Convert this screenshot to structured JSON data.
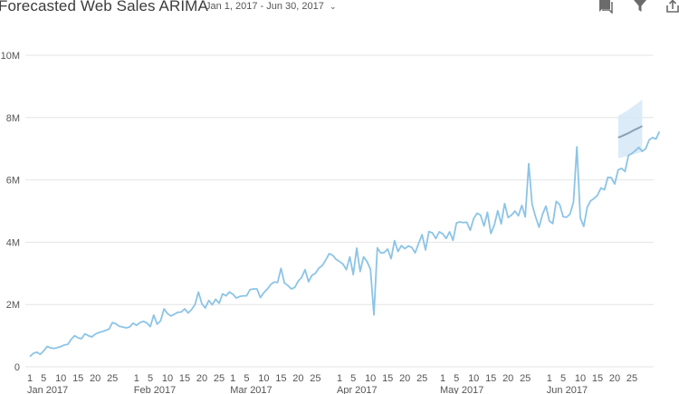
{
  "header": {
    "title": "Forecasted Web Sales ARIMA",
    "date_range": "Jan 1, 2017 - Jun 30, 2017",
    "date_range_icon": "chevron-down-icon",
    "tools": [
      "comment-icon",
      "filter-icon",
      "share-icon"
    ]
  },
  "colors": {
    "actual": "#8cc4e6",
    "forecast": "#8aa0b4",
    "band": "#d6e8f7",
    "grid": "#e4e4e4",
    "icon": "#6b6b6b"
  },
  "chart_data": {
    "type": "line",
    "title": "Forecasted Web Sales ARIMA",
    "x_unit": "date",
    "y_unit": "sales",
    "ylim": [
      0,
      10000000
    ],
    "yticks": [
      0,
      2000000,
      4000000,
      6000000,
      8000000,
      10000000
    ],
    "ytick_labels": [
      "0",
      "2M",
      "4M",
      "6M",
      "8M",
      "10M"
    ],
    "xlim": [
      "2017-01-01",
      "2017-06-30"
    ],
    "x_month_labels": [
      {
        "date": "2017-01-01",
        "label": "Jan 2017"
      },
      {
        "date": "2017-02-01",
        "label": "Feb 2017"
      },
      {
        "date": "2017-03-01",
        "label": "Mar 2017"
      },
      {
        "date": "2017-04-01",
        "label": "Apr 2017"
      },
      {
        "date": "2017-05-01",
        "label": "May 2017"
      },
      {
        "date": "2017-06-01",
        "label": "Jun 2017"
      }
    ],
    "x_day_ticks": [
      1,
      5,
      10,
      15,
      20,
      25
    ],
    "grid": true,
    "legend": "none",
    "series": [
      {
        "kind": "actual",
        "start": "2017-01-01",
        "values": [
          330000,
          430000,
          470000,
          400000,
          510000,
          650000,
          610000,
          590000,
          620000,
          650000,
          700000,
          720000,
          880000,
          1000000,
          930000,
          900000,
          1060000,
          1000000,
          960000,
          1050000,
          1100000,
          1130000,
          1170000,
          1210000,
          1420000,
          1380000,
          1300000,
          1280000,
          1250000,
          1280000,
          1400000,
          1330000,
          1420000,
          1460000,
          1410000,
          1290000,
          1660000,
          1370000,
          1480000,
          1860000,
          1710000,
          1630000,
          1690000,
          1750000,
          1760000,
          1860000,
          1730000,
          1840000,
          2000000,
          2400000,
          2020000,
          1890000,
          2130000,
          1990000,
          2170000,
          2040000,
          2340000,
          2280000,
          2400000,
          2330000,
          2210000,
          2260000,
          2280000,
          2280000,
          2480000,
          2500000,
          2500000,
          2220000,
          2380000,
          2490000,
          2640000,
          2720000,
          2710000,
          3160000,
          2690000,
          2610000,
          2500000,
          2550000,
          2750000,
          2870000,
          3120000,
          2730000,
          2940000,
          3000000,
          3170000,
          3250000,
          3430000,
          3630000,
          3580000,
          3450000,
          3380000,
          3300000,
          3120000,
          3530000,
          2960000,
          3810000,
          3060000,
          3530000,
          3380000,
          3130000,
          1670000,
          3820000,
          3650000,
          3670000,
          3780000,
          3470000,
          4050000,
          3700000,
          3890000,
          3790000,
          3880000,
          3830000,
          3660000,
          3960000,
          4240000,
          3750000,
          4340000,
          4300000,
          4120000,
          4330000,
          4270000,
          4120000,
          4330000,
          4060000,
          4620000,
          4650000,
          4630000,
          4640000,
          4380000,
          4760000,
          4930000,
          4870000,
          4520000,
          4960000,
          4280000,
          4550000,
          5010000,
          4590000,
          5240000,
          4790000,
          4870000,
          5000000,
          4850000,
          5180000,
          4810000,
          6520000,
          5210000,
          4810000,
          4480000,
          4890000,
          5160000,
          4680000,
          4600000,
          5310000,
          5210000,
          4820000,
          4800000,
          4900000,
          5280000,
          7060000,
          4780000,
          4510000,
          5120000,
          5330000,
          5400000,
          5510000,
          5740000,
          5680000,
          6080000,
          6070000,
          5870000,
          6320000,
          6370000,
          6270000,
          6790000,
          6850000,
          6940000,
          7040000,
          6920000,
          7000000,
          7280000,
          7360000,
          7310000,
          7550000
        ]
      },
      {
        "kind": "forecast",
        "start": "2017-06-21",
        "values": [
          7360000,
          7400000,
          7450000,
          7500000,
          7560000,
          7620000,
          7670000,
          7730000
        ],
        "lower": [
          6700000,
          6720000,
          6740000,
          6780000,
          6810000,
          6840000,
          6870000,
          6900000
        ],
        "upper": [
          8050000,
          8120000,
          8180000,
          8250000,
          8330000,
          8410000,
          8490000,
          8580000
        ]
      }
    ]
  }
}
